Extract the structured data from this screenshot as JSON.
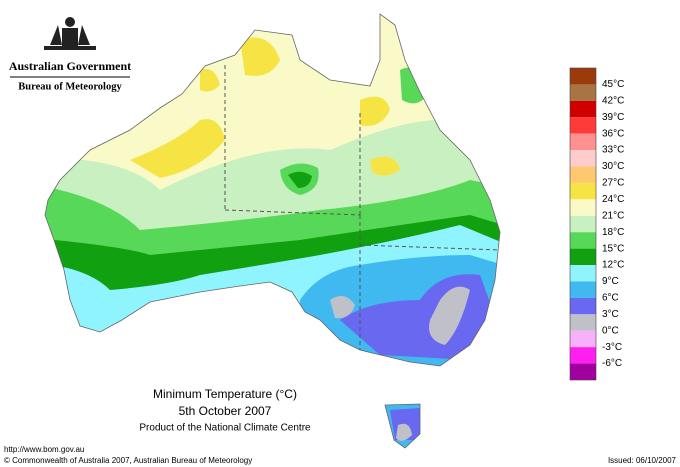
{
  "header": {
    "government": "Australian Government",
    "agency": "Bureau of Meteorology"
  },
  "map": {
    "title": "Minimum Temperature (°C)",
    "date": "5th October 2007",
    "credit": "Product of the National Climate Centre"
  },
  "legend": {
    "colors": [
      "#9c3a0c",
      "#a87444",
      "#d00000",
      "#ff3a3a",
      "#ff9090",
      "#ffcccc",
      "#ffc870",
      "#f6e445",
      "#fafac8",
      "#c8f0c0",
      "#58d858",
      "#10a010",
      "#90f4ff",
      "#40b8f0",
      "#6868f0",
      "#c0c0c8",
      "#f8b0f8",
      "#ff20f0",
      "#a000a0"
    ],
    "labels": [
      "45°C",
      "42°C",
      "39°C",
      "36°C",
      "33°C",
      "30°C",
      "27°C",
      "24°C",
      "21°C",
      "18°C",
      "15°C",
      "12°C",
      "9°C",
      "6°C",
      "3°C",
      "0°C",
      "-3°C",
      "-6°C"
    ]
  },
  "footer": {
    "url": "http://www.bom.gov.au",
    "copyright": "© Commonwealth of Australia 2007, Australian Bureau of Meteorology",
    "issued": "Issued: 06/10/2007"
  }
}
